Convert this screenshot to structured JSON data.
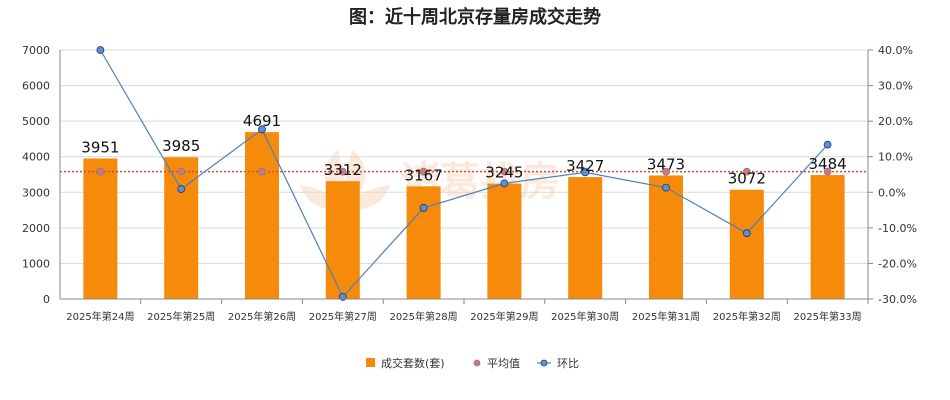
{
  "chart_data": {
    "type": "bar",
    "title": "图：近十周北京存量房成交走势",
    "categories": [
      "2025年第24周",
      "2025年第25周",
      "2025年第26周",
      "2025年第27周",
      "2025年第28周",
      "2025年第29周",
      "2025年第30周",
      "2025年第31周",
      "2025年第32周",
      "2025年第33周"
    ],
    "left_axis": {
      "ylim": [
        0,
        7000
      ],
      "ticks": [
        "0",
        "1000",
        "2000",
        "3000",
        "4000",
        "5000",
        "6000",
        "7000"
      ]
    },
    "right_axis": {
      "ylim": [
        -30,
        40
      ],
      "ticks": [
        "-30.0%",
        "-20.0%",
        "-10.0%",
        "0.0%",
        "10.0%",
        "20.0%",
        "30.0%",
        "40.0%"
      ]
    },
    "series": [
      {
        "name": "成交套数(套)",
        "type": "bar",
        "axis": "left",
        "color": "#f58a0b",
        "values": [
          3951,
          3985,
          4691,
          3312,
          3167,
          3245,
          3427,
          3473,
          3072,
          3484
        ],
        "labels": [
          "3951",
          "3985",
          "4691",
          "3312",
          "3167",
          "3245",
          "3427",
          "3473",
          "3072",
          "3484"
        ]
      },
      {
        "name": "平均值",
        "type": "line",
        "axis": "left",
        "color": "#c0504d",
        "marker_color": "#d9756f",
        "values": [
          3581,
          3581,
          3581,
          3581,
          3581,
          3581,
          3581,
          3581,
          3581,
          3581
        ]
      },
      {
        "name": "环比",
        "type": "line",
        "axis": "right",
        "color": "#4f81bd",
        "marker_color": "#5b8fd6",
        "values": [
          40.0,
          0.9,
          17.7,
          -29.4,
          -4.4,
          2.5,
          5.6,
          1.3,
          -11.5,
          13.4
        ]
      }
    ],
    "legend_position": "bottom",
    "grid": true,
    "watermark": "诸葛找房"
  }
}
